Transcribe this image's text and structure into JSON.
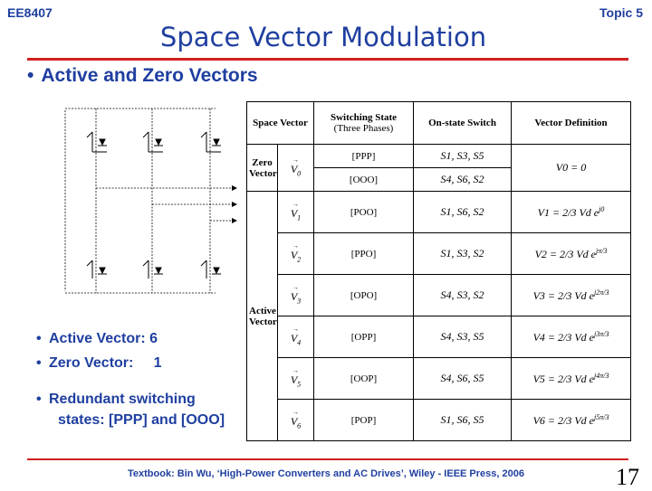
{
  "header": {
    "course": "EE8407",
    "topic": "Topic 5"
  },
  "title": "Space Vector Modulation",
  "section_heading": "Active and Zero Vectors",
  "notes": {
    "active": "Active Vector:  6",
    "zero": "Zero Vector:     1",
    "redundant_1": "Redundant switching",
    "redundant_2": "states: [PPP] and [OOO]"
  },
  "table": {
    "headers": {
      "space_vector": "Space Vector",
      "switching_state": "Switching State",
      "switching_state_sub": "(Three Phases)",
      "on_state": "On-state Switch",
      "definition": "Vector Definition"
    },
    "zero_group_label": "Zero Vector",
    "active_group_label": "Active Vector",
    "zero_rows": [
      {
        "state": "[PPP]",
        "switches": "S1, S3, S5"
      },
      {
        "state": "[OOO]",
        "switches": "S4, S6, S2"
      }
    ],
    "zero_vector": "V0",
    "zero_definition": "V0 = 0",
    "active_rows": [
      {
        "vector": "V1",
        "state": "[POO]",
        "switches": "S1, S6, S2",
        "exponent": "j0"
      },
      {
        "vector": "V2",
        "state": "[PPO]",
        "switches": "S1, S3, S2",
        "exponent": "jπ/3"
      },
      {
        "vector": "V3",
        "state": "[OPO]",
        "switches": "S4, S3, S2",
        "exponent": "j2π/3"
      },
      {
        "vector": "V4",
        "state": "[OPP]",
        "switches": "S4, S3, S5",
        "exponent": "j3π/3"
      },
      {
        "vector": "V5",
        "state": "[OOP]",
        "switches": "S4, S6, S5",
        "exponent": "j4π/3"
      },
      {
        "vector": "V6",
        "state": "[POP]",
        "switches": "S1, S6, S5",
        "exponent": "j5π/3"
      }
    ],
    "definition_coeff": "2/3 Vd e"
  },
  "footer": "Textbook: Bin Wu, ‘High-Power Converters and AC Drives’, Wiley - IEEE Press, 2006",
  "page_number": "17",
  "colors": {
    "heading": "#1f3fa0",
    "rule": "#d02020"
  }
}
